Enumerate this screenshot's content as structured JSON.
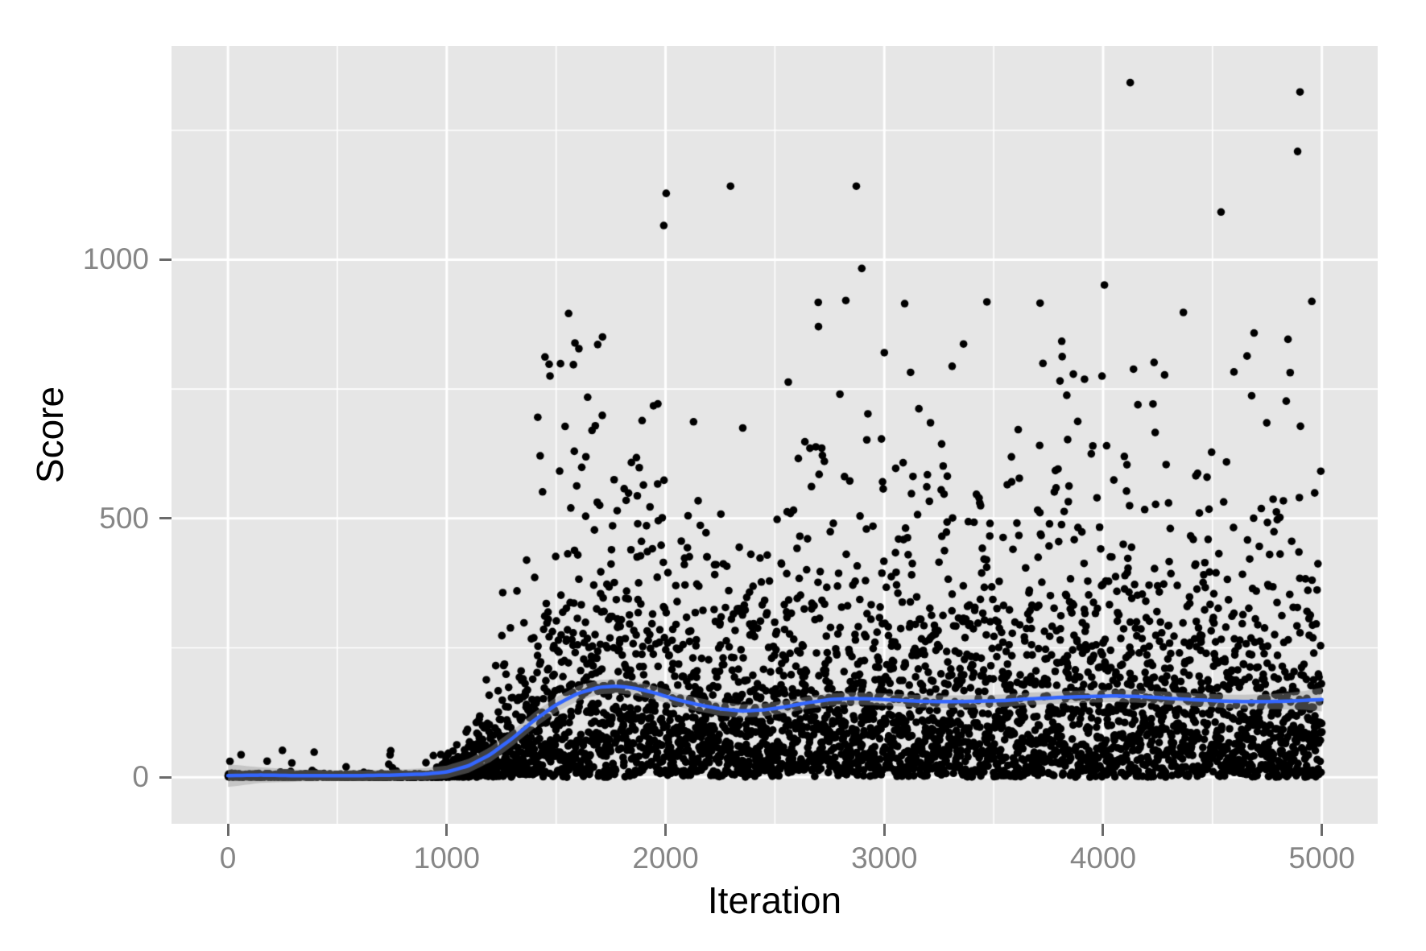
{
  "chart_data": {
    "type": "scatter",
    "title": "",
    "xlabel": "Iteration",
    "ylabel": "Score",
    "x_ticks": [
      0,
      1000,
      2000,
      3000,
      4000,
      5000
    ],
    "y_ticks": [
      0,
      500,
      1000
    ],
    "x_minor_gridlines": [
      500,
      1500,
      2500,
      3500,
      4500
    ],
    "y_minor_gridlines": [
      250,
      750,
      1250
    ],
    "xlim": [
      -258,
      5255
    ],
    "ylim": [
      -90,
      1413
    ],
    "grid": true,
    "legend": false,
    "points_style": {
      "color": "#000000",
      "radius": 4.8
    },
    "point_generator": {
      "seed": 42,
      "count": 5000,
      "x_range": [
        1,
        5000
      ],
      "calm_phase_end": 950,
      "calm_sd": 3.2,
      "calm_bump_prob": 0.012,
      "calm_bump_min": 8,
      "calm_bump_max": 56,
      "tail_mean_scale": 1.04,
      "tail_min_mean": 2.5,
      "tail_cap": 935
    },
    "smooth_line": {
      "color": "#3366FF",
      "width": 4.5,
      "points": [
        [
          0,
          3
        ],
        [
          150,
          4
        ],
        [
          300,
          3
        ],
        [
          450,
          3
        ],
        [
          600,
          3
        ],
        [
          750,
          4
        ],
        [
          900,
          6
        ],
        [
          1000,
          10
        ],
        [
          1100,
          22
        ],
        [
          1200,
          44
        ],
        [
          1300,
          75
        ],
        [
          1400,
          110
        ],
        [
          1500,
          140
        ],
        [
          1600,
          162
        ],
        [
          1700,
          174
        ],
        [
          1780,
          176
        ],
        [
          1860,
          172
        ],
        [
          1950,
          163
        ],
        [
          2050,
          150
        ],
        [
          2150,
          140
        ],
        [
          2250,
          132
        ],
        [
          2350,
          128
        ],
        [
          2450,
          130
        ],
        [
          2550,
          136
        ],
        [
          2650,
          144
        ],
        [
          2750,
          150
        ],
        [
          2850,
          152
        ],
        [
          2950,
          151
        ],
        [
          3050,
          149
        ],
        [
          3150,
          147
        ],
        [
          3250,
          146
        ],
        [
          3350,
          146
        ],
        [
          3450,
          147
        ],
        [
          3550,
          148
        ],
        [
          3650,
          151
        ],
        [
          3750,
          153
        ],
        [
          3850,
          155
        ],
        [
          3950,
          156
        ],
        [
          4050,
          157
        ],
        [
          4150,
          156
        ],
        [
          4250,
          154
        ],
        [
          4350,
          151
        ],
        [
          4450,
          149
        ],
        [
          4550,
          147
        ],
        [
          4650,
          146
        ],
        [
          4750,
          146
        ],
        [
          4850,
          147
        ],
        [
          5000,
          150
        ]
      ]
    },
    "ribbon": {
      "color": "rgba(153,153,153,0.42)",
      "half_width": [
        [
          0,
          22
        ],
        [
          150,
          15
        ],
        [
          350,
          11
        ],
        [
          600,
          10
        ],
        [
          850,
          11
        ],
        [
          1050,
          13
        ],
        [
          1250,
          15
        ],
        [
          1450,
          15
        ],
        [
          1700,
          14
        ],
        [
          2000,
          13
        ],
        [
          2300,
          13
        ],
        [
          2600,
          12
        ],
        [
          3000,
          12
        ],
        [
          3400,
          12
        ],
        [
          3800,
          12
        ],
        [
          4200,
          12
        ],
        [
          4600,
          13
        ],
        [
          4800,
          15
        ],
        [
          4920,
          18
        ],
        [
          5000,
          23
        ]
      ]
    },
    "notable_points": [
      [
        179,
        31
      ],
      [
        385,
        13
      ],
      [
        540,
        20
      ],
      [
        735,
        25
      ],
      [
        752,
        18
      ],
      [
        770,
        12
      ],
      [
        905,
        28
      ],
      [
        1449,
        812
      ],
      [
        1468,
        798
      ],
      [
        1520,
        799
      ],
      [
        1557,
        896
      ],
      [
        1579,
        797
      ],
      [
        1604,
        828
      ],
      [
        1690,
        836
      ],
      [
        1992,
        1066
      ],
      [
        2003,
        1128
      ],
      [
        2297,
        1142
      ],
      [
        2824,
        921
      ],
      [
        2872,
        1142
      ],
      [
        2897,
        983
      ],
      [
        3093,
        915
      ],
      [
        3310,
        794
      ],
      [
        3362,
        837
      ],
      [
        3712,
        916
      ],
      [
        3995,
        775
      ],
      [
        4006,
        951
      ],
      [
        4124,
        1342
      ],
      [
        4367,
        898
      ],
      [
        4539,
        1092
      ],
      [
        4598,
        783
      ],
      [
        4679,
        737
      ],
      [
        4845,
        846
      ],
      [
        4889,
        1209
      ],
      [
        4900,
        1324
      ]
    ],
    "colors": {
      "panel_background": "#E6E6E6",
      "grid_major": "#FFFFFF",
      "grid_minor": "#FFFFFF",
      "tick_mark": "#6A6A6A",
      "tick_label": "#868686",
      "axis_title": "#000000",
      "figure_background": "#FFFFFF"
    }
  }
}
